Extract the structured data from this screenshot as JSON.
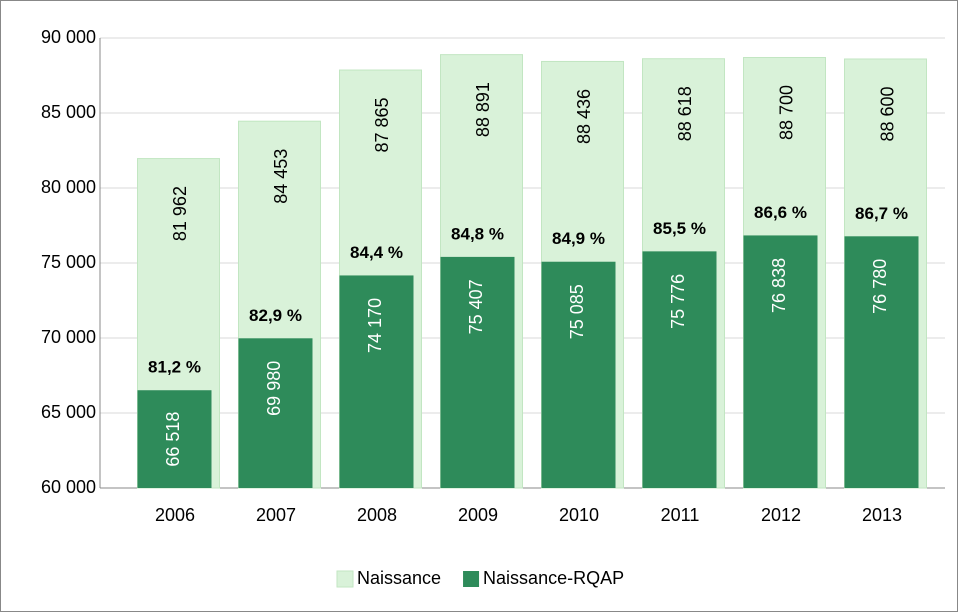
{
  "chart_data": {
    "type": "overlap-bar",
    "categories": [
      "2006",
      "2007",
      "2008",
      "2009",
      "2010",
      "2011",
      "2012",
      "2013"
    ],
    "series": [
      {
        "name": "Naissance",
        "color": "#d9f2d9",
        "values": [
          81962,
          84453,
          87865,
          88891,
          88436,
          88618,
          88700,
          88600
        ],
        "value_labels": [
          "81 962",
          "84 453",
          "87 865",
          "88 891",
          "88 436",
          "88 618",
          "88 700",
          "88 600"
        ]
      },
      {
        "name": "Naissance-RQAP",
        "color": "#2e8b5a",
        "values": [
          66518,
          69980,
          74170,
          75407,
          75085,
          75776,
          76838,
          76780
        ],
        "value_labels": [
          "66 518",
          "69 980",
          "74 170",
          "75 407",
          "75 085",
          "75 776",
          "76 838",
          "76 780"
        ]
      }
    ],
    "annotations": [
      "81,2 %",
      "82,9 %",
      "84,4 %",
      "84,8 %",
      "84,9 %",
      "85,5 %",
      "86,6 %",
      "86,7 %"
    ],
    "ylim": [
      60000,
      90000
    ],
    "yticks": [
      {
        "value": 60000,
        "label": "60 000"
      },
      {
        "value": 65000,
        "label": "65 000"
      },
      {
        "value": 70000,
        "label": "70 000"
      },
      {
        "value": 75000,
        "label": "75 000"
      },
      {
        "value": 80000,
        "label": "80 000"
      },
      {
        "value": 85000,
        "label": "85 000"
      },
      {
        "value": 90000,
        "label": "90 000"
      }
    ],
    "grid": true,
    "legend": "bottom"
  }
}
